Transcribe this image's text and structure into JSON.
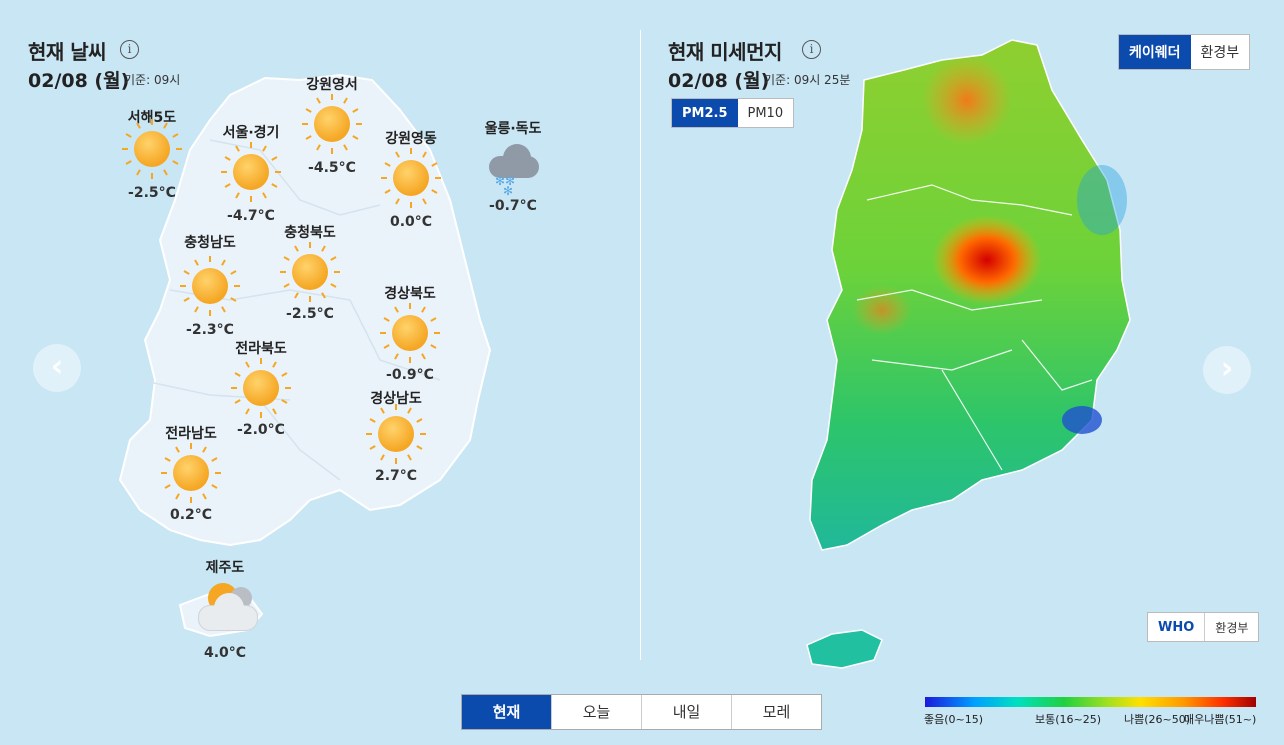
{
  "weather": {
    "title": "현재 날씨",
    "date": "02/08 (월)",
    "base_time": "기준: 09시",
    "stations": [
      {
        "name": "서해5도",
        "temp": "-2.5°C",
        "icon": "sun-icon"
      },
      {
        "name": "서울·경기",
        "temp": "-4.7°C",
        "icon": "sun-icon"
      },
      {
        "name": "강원영서",
        "temp": "-4.5°C",
        "icon": "sun-icon"
      },
      {
        "name": "강원영동",
        "temp": "0.0°C",
        "icon": "sun-icon"
      },
      {
        "name": "울릉·독도",
        "temp": "-0.7°C",
        "icon": "snow-cloud-icon"
      },
      {
        "name": "충청남도",
        "temp": "-2.3°C",
        "icon": "sun-icon"
      },
      {
        "name": "충청북도",
        "temp": "-2.5°C",
        "icon": "sun-icon"
      },
      {
        "name": "경상북도",
        "temp": "-0.9°C",
        "icon": "sun-icon"
      },
      {
        "name": "전라북도",
        "temp": "-2.0°C",
        "icon": "sun-icon"
      },
      {
        "name": "경상남도",
        "temp": "2.7°C",
        "icon": "sun-icon"
      },
      {
        "name": "전라남도",
        "temp": "0.2°C",
        "icon": "sun-icon"
      },
      {
        "name": "제주도",
        "temp": "4.0°C",
        "icon": "partly-cloudy-icon"
      }
    ]
  },
  "dust": {
    "title": "현재 미세먼지",
    "date": "02/08 (월)",
    "base_time": "기준: 09시 25분",
    "source_toggle": [
      "케이웨더",
      "환경부"
    ],
    "pm_toggle": [
      "PM2.5",
      "PM10"
    ],
    "standard_toggle": [
      "WHO",
      "환경부"
    ],
    "legend": [
      "좋음(0~15)",
      "보통(16~25)",
      "나쁨(26~50)",
      "매우나쁨(51~)"
    ]
  },
  "tabs": [
    "현재",
    "오늘",
    "내일",
    "모레"
  ],
  "colors": {
    "accent": "#0a4bad",
    "background": "#c9e6f4"
  }
}
